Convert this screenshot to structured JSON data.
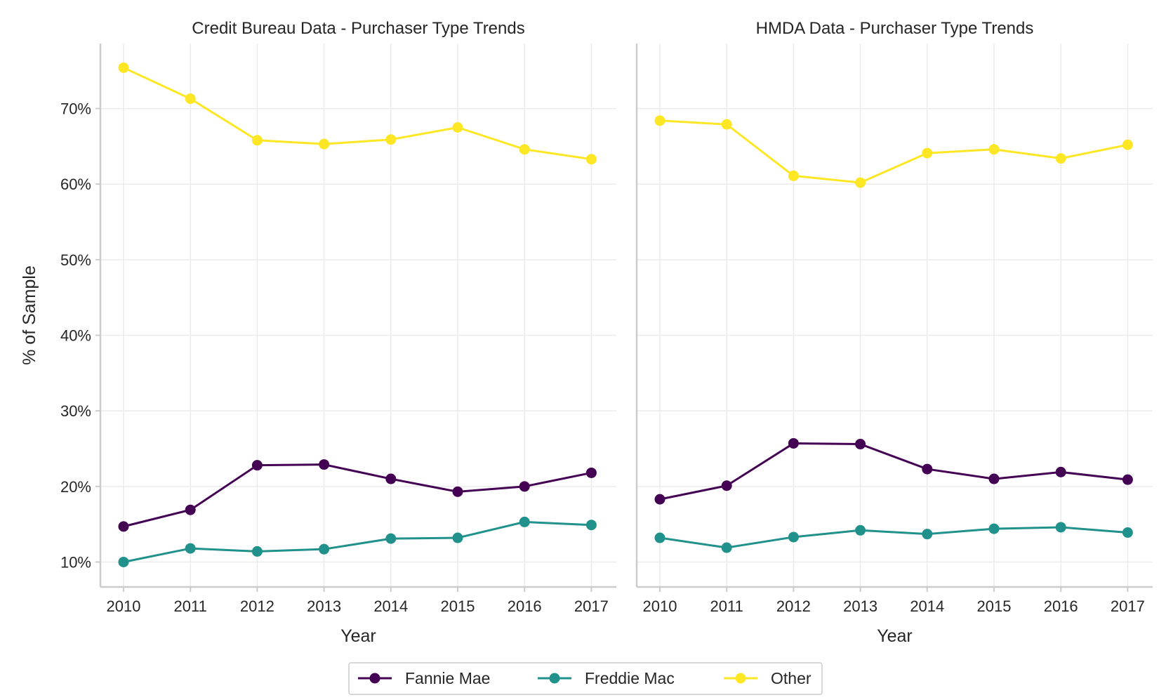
{
  "chart_data": [
    {
      "type": "line",
      "title": "Credit Bureau Data - Purchaser Type Trends",
      "xlabel": "Year",
      "ylabel": "% of Sample",
      "x": [
        "2010",
        "2011",
        "2012",
        "2013",
        "2014",
        "2015",
        "2016",
        "2017"
      ],
      "yticks": [
        10,
        20,
        30,
        40,
        50,
        60,
        70
      ],
      "ytick_labels": [
        "10%",
        "20%",
        "30%",
        "40%",
        "50%",
        "60%",
        "70%"
      ],
      "ylim": [
        6.7,
        78.6
      ],
      "grid": true,
      "series": [
        {
          "name": "Fannie Mae",
          "color": "#440154",
          "values": [
            14.7,
            16.9,
            22.8,
            22.9,
            21.0,
            19.3,
            20.0,
            21.8
          ]
        },
        {
          "name": "Freddie Mac",
          "color": "#21918c",
          "values": [
            10.0,
            11.8,
            11.4,
            11.7,
            13.1,
            13.2,
            15.3,
            14.9
          ]
        },
        {
          "name": "Other",
          "color": "#fde725",
          "values": [
            75.4,
            71.3,
            65.8,
            65.3,
            65.9,
            67.5,
            64.6,
            63.3
          ]
        }
      ]
    },
    {
      "type": "line",
      "title": "HMDA Data - Purchaser Type Trends",
      "xlabel": "Year",
      "ylabel": "",
      "x": [
        "2010",
        "2011",
        "2012",
        "2013",
        "2014",
        "2015",
        "2016",
        "2017"
      ],
      "yticks": [
        10,
        20,
        30,
        40,
        50,
        60,
        70
      ],
      "ytick_labels": [],
      "ylim": [
        6.7,
        78.6
      ],
      "grid": true,
      "series": [
        {
          "name": "Fannie Mae",
          "color": "#440154",
          "values": [
            18.3,
            20.1,
            25.7,
            25.6,
            22.3,
            21.0,
            21.9,
            20.9
          ]
        },
        {
          "name": "Freddie Mac",
          "color": "#21918c",
          "values": [
            13.2,
            11.9,
            13.3,
            14.2,
            13.7,
            14.4,
            14.6,
            13.9
          ]
        },
        {
          "name": "Other",
          "color": "#fde725",
          "values": [
            68.4,
            67.9,
            61.1,
            60.2,
            64.1,
            64.6,
            63.4,
            65.2
          ]
        }
      ]
    }
  ],
  "legend": {
    "position": "bottom-center",
    "entries": [
      {
        "label": "Fannie Mae",
        "color": "#440154"
      },
      {
        "label": "Freddie Mac",
        "color": "#21918c"
      },
      {
        "label": "Other",
        "color": "#fde725"
      }
    ]
  }
}
